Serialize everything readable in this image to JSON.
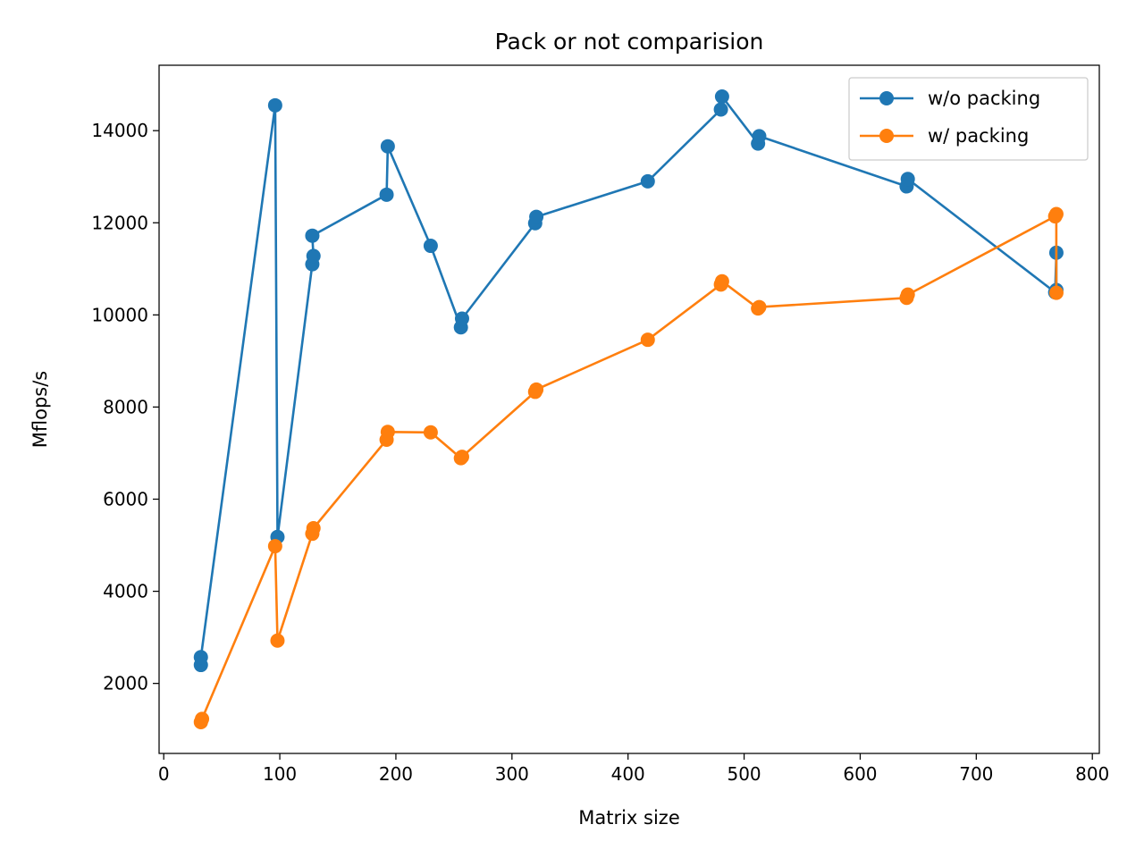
{
  "chart_data": {
    "type": "line",
    "title": "Pack or not comparision",
    "xlabel": "Matrix size",
    "ylabel": "Mflops/s",
    "xlim": [
      -4,
      806
    ],
    "ylim": [
      480,
      15420
    ],
    "xticks": [
      0,
      100,
      200,
      300,
      400,
      500,
      600,
      700,
      800
    ],
    "yticks": [
      2000,
      4000,
      6000,
      8000,
      10000,
      12000,
      14000
    ],
    "grid": false,
    "legend_position": "top-right",
    "series": [
      {
        "name": "w/o packing",
        "color": "#1f77b4",
        "marker": "circle",
        "x": [
          32,
          32,
          96,
          98,
          128,
          129,
          128,
          192,
          193,
          230,
          256,
          257,
          320,
          321,
          417,
          480,
          481,
          512,
          513,
          640,
          641,
          768,
          769,
          769
        ],
        "y": [
          2400,
          2570,
          14550,
          5180,
          11100,
          11280,
          11720,
          12610,
          13660,
          11500,
          9730,
          9920,
          11990,
          12130,
          12900,
          14460,
          14740,
          13720,
          13880,
          12790,
          12950,
          10490,
          11350,
          10540
        ]
      },
      {
        "name": "w/ packing",
        "color": "#ff7f0e",
        "marker": "circle",
        "x": [
          32,
          33,
          96,
          98,
          128,
          129,
          192,
          193,
          230,
          256,
          257,
          320,
          321,
          417,
          480,
          481,
          512,
          513,
          640,
          641,
          768,
          769,
          769
        ],
        "y": [
          1160,
          1230,
          4980,
          2930,
          5250,
          5370,
          7290,
          7460,
          7450,
          6890,
          6920,
          8330,
          8380,
          9460,
          10660,
          10730,
          10140,
          10170,
          10370,
          10440,
          12140,
          12190,
          10480
        ]
      }
    ]
  }
}
